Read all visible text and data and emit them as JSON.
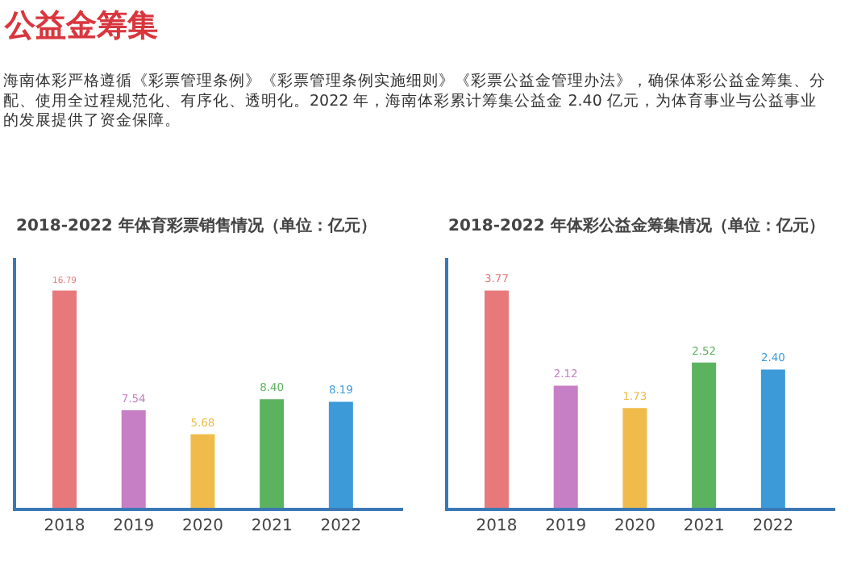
{
  "chart_data": [
    {
      "type": "other",
      "title": "公益金筹集",
      "annotations": [
        "海南体彩严格遵循《彩票管理条例》《彩票管理条例实施细则》《彩票公益金管理办法》，确保体彩公益金筹集、分配、使用全过程规范化、有序化、透明化。2022 年，海南体彩累计筹集公益金 2.40 亿元，为体育事业与公益事业的发展提供了资金保障。"
      ]
    },
    {
      "type": "bar",
      "title": "2018-2022 年体育彩票销售情况（单位：亿元）",
      "categories": [
        "2018",
        "2019",
        "2020",
        "2021",
        "2022"
      ],
      "values": [
        16.79,
        7.54,
        5.68,
        8.4,
        8.19
      ],
      "value_labels": [
        "16.79",
        "7.54",
        "5.68",
        "8.40",
        "8.19"
      ],
      "colors": [
        "#e8797b",
        "#c67fc4",
        "#f0bb4a",
        "#5cb35f",
        "#3c9ad8"
      ]
    },
    {
      "type": "bar",
      "title": "2018-2022 年体彩公益金筹集情况（单位：亿元）",
      "categories": [
        "2018",
        "2019",
        "2020",
        "2021",
        "2022"
      ],
      "values": [
        3.77,
        2.12,
        1.73,
        2.52,
        2.4
      ],
      "value_labels": [
        "3.77",
        "2.12",
        "1.73",
        "2.52",
        "2.40"
      ],
      "colors": [
        "#e8797b",
        "#c67fc4",
        "#f0bb4a",
        "#5cb35f",
        "#3c9ad8"
      ]
    }
  ]
}
